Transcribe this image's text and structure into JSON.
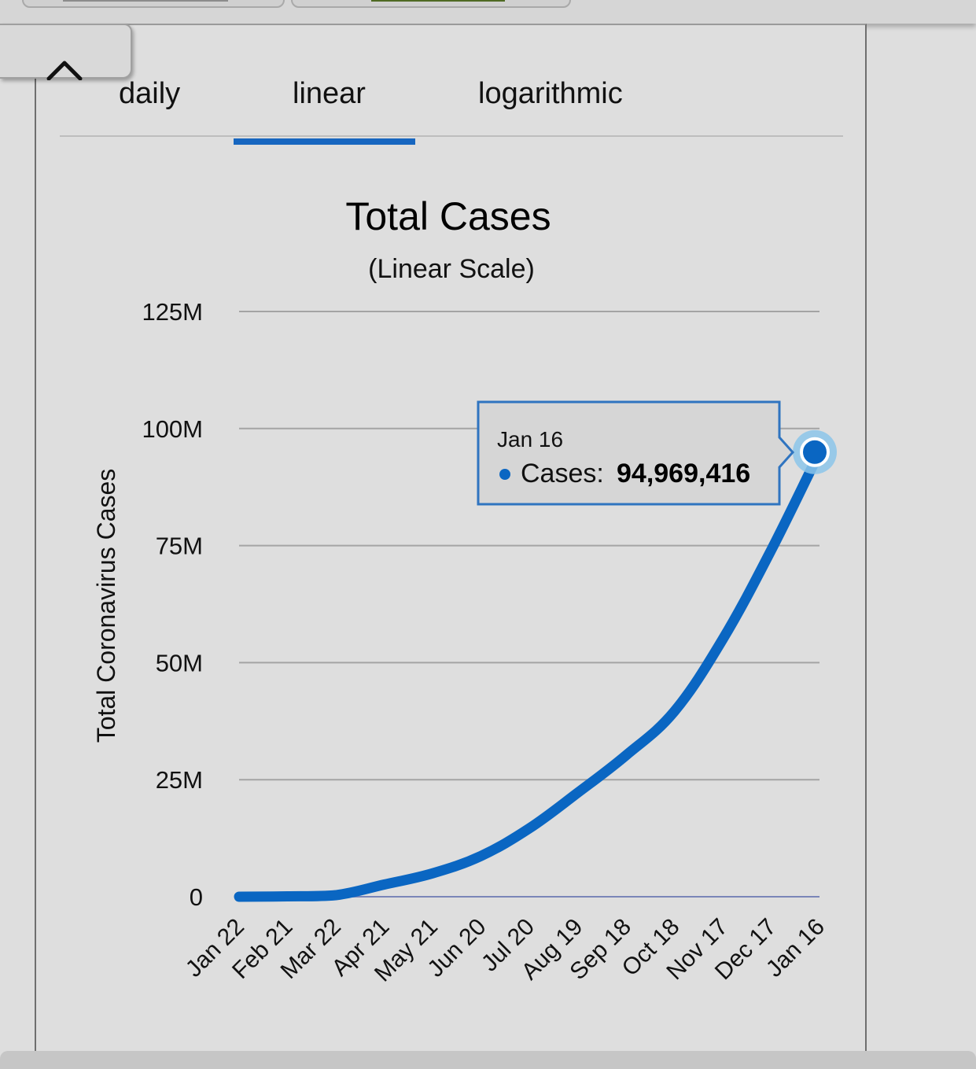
{
  "tabs": [
    {
      "label": "daily",
      "active": false
    },
    {
      "label": "linear",
      "active": true
    },
    {
      "label": "logarithmic",
      "active": false
    }
  ],
  "icons": {
    "collapse": "chevron-up-icon"
  },
  "colors": {
    "accent": "#1766c0",
    "line": "#0a66c2",
    "tooltip_border": "#2f74c0"
  },
  "tooltip": {
    "date": "Jan 16",
    "series_label": "Cases:",
    "value": "94,969,416"
  },
  "chart_data": {
    "type": "line",
    "title": "Total Cases",
    "subtitle": "(Linear Scale)",
    "ylabel": "Total Coronavirus Cases",
    "xlabel": "",
    "ylim": [
      0,
      125000000
    ],
    "grid": true,
    "y_ticks": [
      {
        "value": 0,
        "label": "0"
      },
      {
        "value": 25000000,
        "label": "25M"
      },
      {
        "value": 50000000,
        "label": "50M"
      },
      {
        "value": 75000000,
        "label": "75M"
      },
      {
        "value": 100000000,
        "label": "100M"
      },
      {
        "value": 125000000,
        "label": "125M"
      }
    ],
    "x_ticks": [
      "Jan 22",
      "Feb 21",
      "Mar 22",
      "Apr 21",
      "May 21",
      "Jun 20",
      "Jul 20",
      "Aug 19",
      "Sep 18",
      "Oct 18",
      "Nov 17",
      "Dec 17",
      "Jan 16"
    ],
    "series": [
      {
        "x": [
          "Jan 22",
          "Feb 21",
          "Mar 22",
          "Apr 21",
          "May 21",
          "Jun 20",
          "Jul 20",
          "Aug 19",
          "Sep 18",
          "Oct 18",
          "Nov 17",
          "Dec 17",
          "Jan 16"
        ],
        "values": [
          600,
          80000,
          330000,
          2600000,
          5000000,
          8700000,
          14600000,
          22200000,
          30200000,
          39600000,
          55000000,
          74000000,
          94969416
        ]
      }
    ]
  }
}
